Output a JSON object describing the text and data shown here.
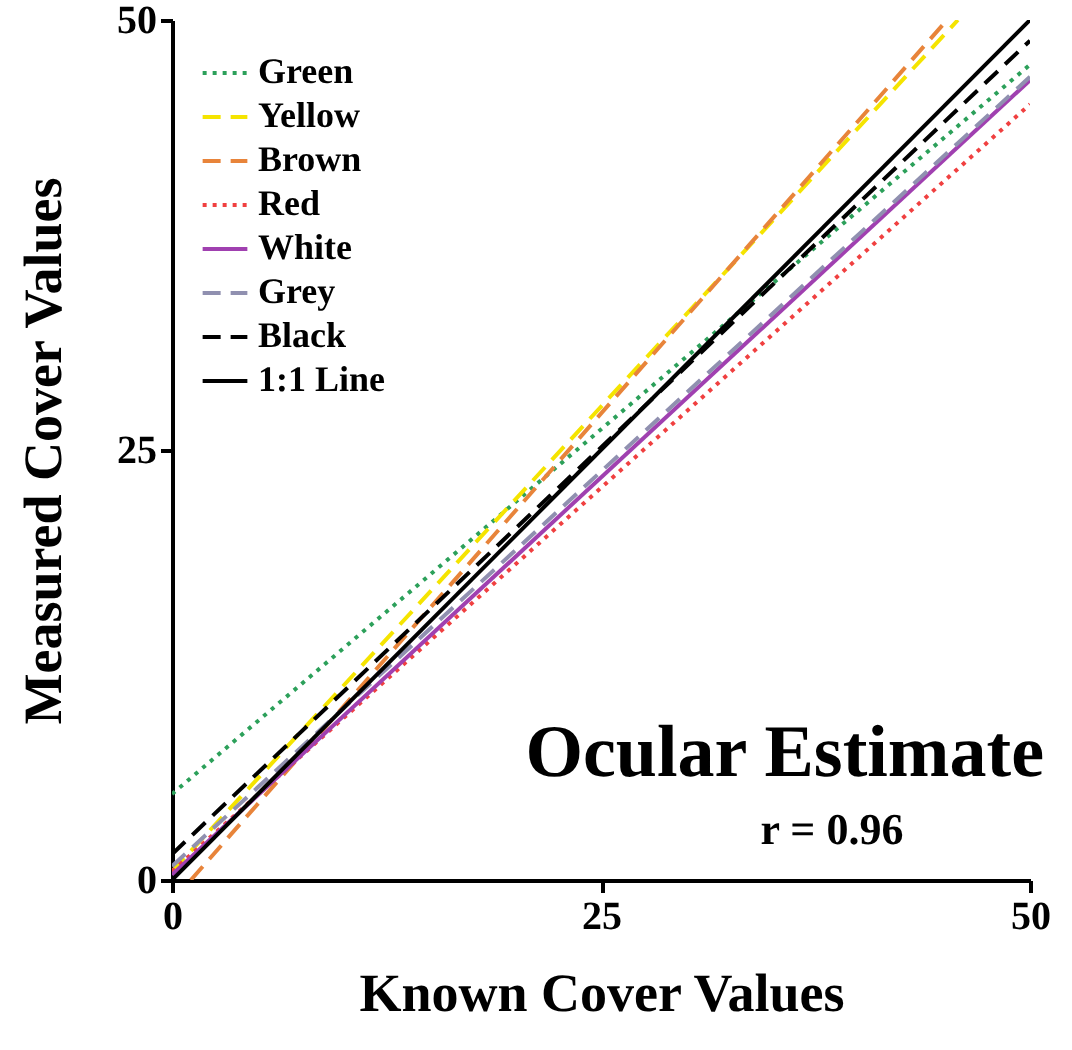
{
  "chart_data": {
    "type": "line",
    "xlabel": "Known Cover Values",
    "ylabel": "Measured Cover Values",
    "xlim": [
      0,
      50
    ],
    "ylim": [
      0,
      50
    ],
    "xticks": [
      0,
      25,
      50
    ],
    "yticks": [
      0,
      25,
      50
    ],
    "grid": false,
    "legend": "top left",
    "marker": "none",
    "annotations": [
      "Ocular Estimate",
      "r = 0.96"
    ],
    "series": [
      {
        "name": "Green",
        "color": "#2ca05a",
        "line_style": "dotted",
        "x": [
          0,
          50
        ],
        "values": [
          5.0,
          47.4
        ]
      },
      {
        "name": "Yellow",
        "color": "#f5e400",
        "line_style": "dashed",
        "x": [
          0,
          45.8
        ],
        "values": [
          0.5,
          50
        ]
      },
      {
        "name": "Brown",
        "color": "#e8843a",
        "line_style": "dashed",
        "x": [
          1.1,
          44.9
        ],
        "values": [
          0,
          49.7
        ]
      },
      {
        "name": "Red",
        "color": "#f04040",
        "line_style": "dotted",
        "x": [
          0,
          50
        ],
        "values": [
          0.5,
          45.1
        ]
      },
      {
        "name": "White",
        "color": "#a040b0",
        "line_style": "solid",
        "x": [
          0,
          50
        ],
        "values": [
          0.3,
          46.5
        ]
      },
      {
        "name": "Grey",
        "color": "#9090b0",
        "line_style": "dashed",
        "x": [
          0,
          50
        ],
        "values": [
          0.8,
          46.7
        ]
      },
      {
        "name": "Black",
        "color": "#000000",
        "line_style": "dashed",
        "x": [
          0,
          50
        ],
        "values": [
          1.5,
          48.8
        ]
      },
      {
        "name": "1:1 Line",
        "color": "#000000",
        "line_style": "solid",
        "x": [
          0,
          50
        ],
        "values": [
          0,
          50
        ]
      }
    ]
  }
}
